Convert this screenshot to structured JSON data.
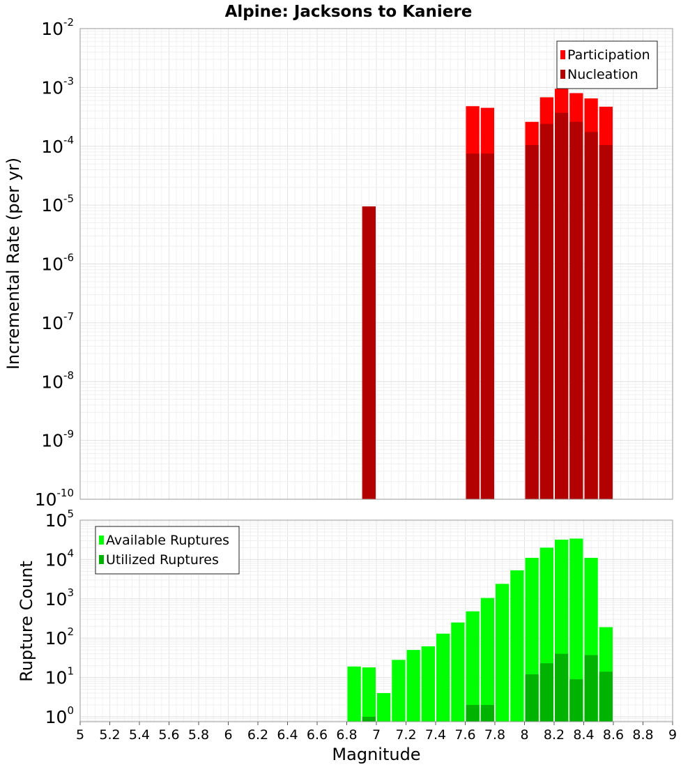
{
  "chart_data": [
    {
      "type": "bar",
      "title": "Alpine: Jacksons to Kaniere",
      "xlabel": "",
      "ylabel": "Incremental Rate (per yr)",
      "xlim": [
        5,
        9
      ],
      "ylim": [
        1e-10,
        0.01
      ],
      "yscale": "log",
      "grid": true,
      "bar_mode": "overlay",
      "legend": {
        "placement": "top-right"
      },
      "y_ticks": [
        {
          "base": "10",
          "exp": "-10"
        },
        {
          "base": "10",
          "exp": "-9"
        },
        {
          "base": "10",
          "exp": "-8"
        },
        {
          "base": "10",
          "exp": "-7"
        },
        {
          "base": "10",
          "exp": "-6"
        },
        {
          "base": "10",
          "exp": "-5"
        },
        {
          "base": "10",
          "exp": "-4"
        },
        {
          "base": "10",
          "exp": "-3"
        },
        {
          "base": "10",
          "exp": "-2"
        }
      ],
      "x": [
        6.85,
        6.95,
        7.05,
        7.15,
        7.25,
        7.35,
        7.45,
        7.55,
        7.65,
        7.75,
        7.85,
        7.95,
        8.05,
        8.15,
        8.25,
        8.35,
        8.45,
        8.55
      ],
      "series": [
        {
          "name": "Participation",
          "color": "#ff0000",
          "values": [
            null,
            9.5e-06,
            null,
            null,
            null,
            null,
            null,
            null,
            0.00048,
            0.00045,
            null,
            null,
            0.00026,
            0.00068,
            0.00095,
            0.0008,
            0.00065,
            0.00047
          ]
        },
        {
          "name": "Nucleation",
          "color": "#b30000",
          "values": [
            null,
            9.5e-06,
            null,
            null,
            null,
            null,
            null,
            null,
            7.5e-05,
            7.5e-05,
            null,
            null,
            0.000105,
            0.00024,
            0.00037,
            0.00026,
            0.000175,
            0.000105
          ]
        }
      ]
    },
    {
      "type": "bar",
      "title": "",
      "xlabel": "Magnitude",
      "ylabel": "Rupture Count",
      "xlim": [
        5,
        9
      ],
      "ylim": [
        0.75,
        100000.0
      ],
      "yscale": "log",
      "grid": true,
      "bar_mode": "overlay",
      "legend": {
        "placement": "top-left"
      },
      "x_ticks": [
        "5",
        "5.2",
        "5.4",
        "5.6",
        "5.8",
        "6",
        "6.2",
        "6.4",
        "6.6",
        "6.8",
        "7",
        "7.2",
        "7.4",
        "7.6",
        "7.8",
        "8",
        "8.2",
        "8.4",
        "8.6",
        "8.8",
        "9"
      ],
      "y_ticks": [
        {
          "base": "10",
          "exp": "0"
        },
        {
          "base": "10",
          "exp": "1"
        },
        {
          "base": "10",
          "exp": "2"
        },
        {
          "base": "10",
          "exp": "3"
        },
        {
          "base": "10",
          "exp": "4"
        },
        {
          "base": "10",
          "exp": "5"
        }
      ],
      "x": [
        6.85,
        6.95,
        7.05,
        7.15,
        7.25,
        7.35,
        7.45,
        7.55,
        7.65,
        7.75,
        7.85,
        7.95,
        8.05,
        8.15,
        8.25,
        8.35,
        8.45,
        8.55
      ],
      "series": [
        {
          "name": "Available Ruptures",
          "color": "#00ff00",
          "values": [
            19,
            18,
            4,
            28,
            50,
            62,
            130,
            250,
            480,
            1050,
            2400,
            5300,
            11000,
            20000,
            32000,
            34000,
            11000,
            190
          ]
        },
        {
          "name": "Utilized Ruptures",
          "color": "#00b300",
          "values": [
            null,
            1,
            null,
            null,
            null,
            null,
            null,
            null,
            2,
            2,
            null,
            null,
            12,
            23,
            40,
            9,
            37,
            14
          ]
        }
      ]
    }
  ]
}
